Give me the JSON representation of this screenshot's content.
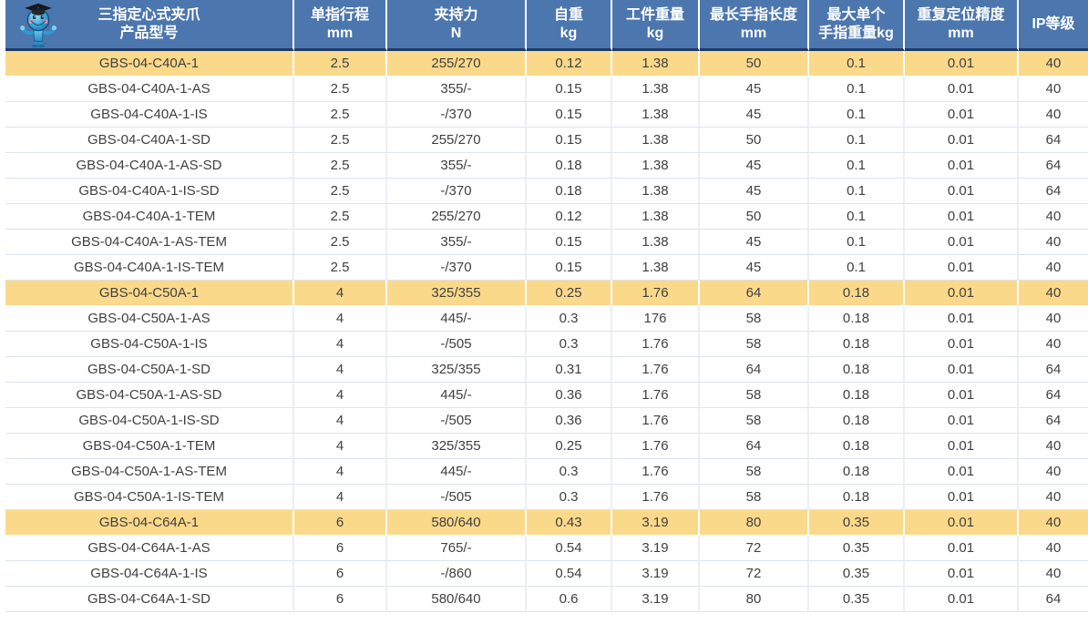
{
  "theme": {
    "header_bg": "#4C76AE",
    "header_text": "#FFFFFF",
    "header_divider": "#FFFFFF",
    "header_bottom_border": "#1E3A66",
    "highlight_row_bg": "#FBD98A",
    "row_bg": "#FFFFFF",
    "body_text": "#404040",
    "grid_horizontal": "#DCE3ED",
    "grid_vertical": "#EDEFF3"
  },
  "icons": {
    "mascot": "graduate-robot-mascot-icon"
  },
  "table": {
    "columns": [
      {
        "key": "model",
        "line1": "三指定心式夹爪",
        "line2": "产品型号"
      },
      {
        "key": "stroke_mm",
        "line1": "单指行程",
        "line2": "mm"
      },
      {
        "key": "grip_force_n",
        "line1": "夹持力",
        "line2": "N"
      },
      {
        "key": "self_weight_kg",
        "line1": "自重",
        "line2": "kg"
      },
      {
        "key": "workpiece_weight_kg",
        "line1": "工件重量",
        "line2": "kg"
      },
      {
        "key": "max_finger_length_mm",
        "line1": "最长手指长度",
        "line2": "mm"
      },
      {
        "key": "max_single_finger_weight_kg",
        "line1": "最大单个",
        "line2": "手指重量kg"
      },
      {
        "key": "repeat_accuracy_mm",
        "line1": "重复定位精度",
        "line2": "mm"
      },
      {
        "key": "ip_rating",
        "line1": "IP等级",
        "line2": ""
      }
    ],
    "rows": [
      {
        "highlight": true,
        "cells": [
          "GBS-04-C40A-1",
          "2.5",
          "255/270",
          "0.12",
          "1.38",
          "50",
          "0.1",
          "0.01",
          "40"
        ]
      },
      {
        "highlight": false,
        "cells": [
          "GBS-04-C40A-1-AS",
          "2.5",
          "355/-",
          "0.15",
          "1.38",
          "45",
          "0.1",
          "0.01",
          "40"
        ]
      },
      {
        "highlight": false,
        "cells": [
          "GBS-04-C40A-1-IS",
          "2.5",
          "-/370",
          "0.15",
          "1.38",
          "45",
          "0.1",
          "0.01",
          "40"
        ]
      },
      {
        "highlight": false,
        "cells": [
          "GBS-04-C40A-1-SD",
          "2.5",
          "255/270",
          "0.15",
          "1.38",
          "50",
          "0.1",
          "0.01",
          "64"
        ]
      },
      {
        "highlight": false,
        "cells": [
          "GBS-04-C40A-1-AS-SD",
          "2.5",
          "355/-",
          "0.18",
          "1.38",
          "45",
          "0.1",
          "0.01",
          "64"
        ]
      },
      {
        "highlight": false,
        "cells": [
          "GBS-04-C40A-1-IS-SD",
          "2.5",
          "-/370",
          "0.18",
          "1.38",
          "45",
          "0.1",
          "0.01",
          "64"
        ]
      },
      {
        "highlight": false,
        "cells": [
          "GBS-04-C40A-1-TEM",
          "2.5",
          "255/270",
          "0.12",
          "1.38",
          "50",
          "0.1",
          "0.01",
          "40"
        ]
      },
      {
        "highlight": false,
        "cells": [
          "GBS-04-C40A-1-AS-TEM",
          "2.5",
          "355/-",
          "0.15",
          "1.38",
          "45",
          "0.1",
          "0.01",
          "40"
        ]
      },
      {
        "highlight": false,
        "cells": [
          "GBS-04-C40A-1-IS-TEM",
          "2.5",
          "-/370",
          "0.15",
          "1.38",
          "45",
          "0.1",
          "0.01",
          "40"
        ]
      },
      {
        "highlight": true,
        "cells": [
          "GBS-04-C50A-1",
          "4",
          "325/355",
          "0.25",
          "1.76",
          "64",
          "0.18",
          "0.01",
          "40"
        ]
      },
      {
        "highlight": false,
        "cells": [
          "GBS-04-C50A-1-AS",
          "4",
          "445/-",
          "0.3",
          "176",
          "58",
          "0.18",
          "0.01",
          "40"
        ]
      },
      {
        "highlight": false,
        "cells": [
          "GBS-04-C50A-1-IS",
          "4",
          "-/505",
          "0.3",
          "1.76",
          "58",
          "0.18",
          "0.01",
          "40"
        ]
      },
      {
        "highlight": false,
        "cells": [
          "GBS-04-C50A-1-SD",
          "4",
          "325/355",
          "0.31",
          "1.76",
          "64",
          "0.18",
          "0.01",
          "64"
        ]
      },
      {
        "highlight": false,
        "cells": [
          "GBS-04-C50A-1-AS-SD",
          "4",
          "445/-",
          "0.36",
          "1.76",
          "58",
          "0.18",
          "0.01",
          "64"
        ]
      },
      {
        "highlight": false,
        "cells": [
          "GBS-04-C50A-1-IS-SD",
          "4",
          "-/505",
          "0.36",
          "1.76",
          "58",
          "0.18",
          "0.01",
          "64"
        ]
      },
      {
        "highlight": false,
        "cells": [
          "GBS-04-C50A-1-TEM",
          "4",
          "325/355",
          "0.25",
          "1.76",
          "64",
          "0.18",
          "0.01",
          "40"
        ]
      },
      {
        "highlight": false,
        "cells": [
          "GBS-04-C50A-1-AS-TEM",
          "4",
          "445/-",
          "0.3",
          "1.76",
          "58",
          "0.18",
          "0.01",
          "40"
        ]
      },
      {
        "highlight": false,
        "cells": [
          "GBS-04-C50A-1-IS-TEM",
          "4",
          "-/505",
          "0.3",
          "1.76",
          "58",
          "0.18",
          "0.01",
          "40"
        ]
      },
      {
        "highlight": true,
        "cells": [
          "GBS-04-C64A-1",
          "6",
          "580/640",
          "0.43",
          "3.19",
          "80",
          "0.35",
          "0.01",
          "40"
        ]
      },
      {
        "highlight": false,
        "cells": [
          "GBS-04-C64A-1-AS",
          "6",
          "765/-",
          "0.54",
          "3.19",
          "72",
          "0.35",
          "0.01",
          "40"
        ]
      },
      {
        "highlight": false,
        "cells": [
          "GBS-04-C64A-1-IS",
          "6",
          "-/860",
          "0.54",
          "3.19",
          "72",
          "0.35",
          "0.01",
          "40"
        ]
      },
      {
        "highlight": false,
        "cells": [
          "GBS-04-C64A-1-SD",
          "6",
          "580/640",
          "0.6",
          "3.19",
          "80",
          "0.35",
          "0.01",
          "64"
        ]
      }
    ]
  }
}
